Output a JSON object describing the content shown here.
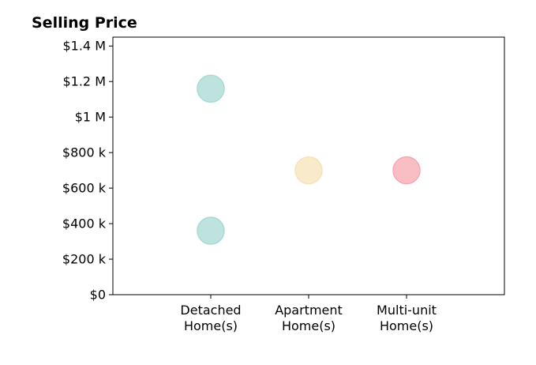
{
  "chart_data": {
    "type": "scatter",
    "title": "Selling Price",
    "xlabel": "",
    "ylabel": "",
    "categories": [
      "Detached\nHome(s)",
      "Apartment\nHome(s)",
      "Multi-unit\nHome(s)"
    ],
    "xlim": [
      -1,
      3
    ],
    "ylim": [
      0,
      1450000
    ],
    "yticks": [
      {
        "value": 0,
        "label": "$0"
      },
      {
        "value": 200000,
        "label": "$200 k"
      },
      {
        "value": 400000,
        "label": "$400 k"
      },
      {
        "value": 600000,
        "label": "$600 k"
      },
      {
        "value": 800000,
        "label": "$800 k"
      },
      {
        "value": 1000000,
        "label": "$1 M"
      },
      {
        "value": 1200000,
        "label": "$1.2 M"
      },
      {
        "value": 1400000,
        "label": "$1.4 M"
      }
    ],
    "points": [
      {
        "category": "Detached\nHome(s)",
        "y": 1160000,
        "color": "#a8dad3"
      },
      {
        "category": "Detached\nHome(s)",
        "y": 360000,
        "color": "#a8dad3"
      },
      {
        "category": "Apartment\nHome(s)",
        "y": 700000,
        "color": "#f7e3b9"
      },
      {
        "category": "Multi-unit\nHome(s)",
        "y": 700000,
        "color": "#f5a8b0"
      }
    ],
    "grid": false,
    "legend": "none"
  }
}
